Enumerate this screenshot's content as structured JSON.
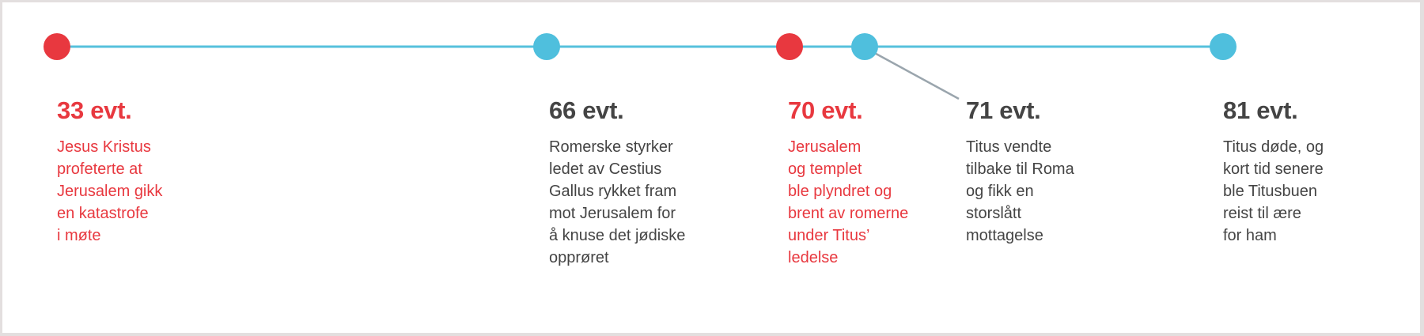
{
  "colors": {
    "line": "#56c1dc",
    "highlight": "#e8383f",
    "normal": "#444444",
    "connector": "#9aa5ad"
  },
  "events": [
    {
      "year": "33 evt.",
      "highlight": true,
      "lines": [
        "Jesus Kristus",
        "profeterte at",
        "Jerusalem gikk",
        "en katastrofe",
        "i møte"
      ]
    },
    {
      "year": "66 evt.",
      "highlight": false,
      "lines": [
        "Romerske styrker",
        "ledet av Cestius",
        "Gallus rykket fram",
        "mot Jerusalem for",
        "å knuse det jødiske",
        "opprøret"
      ]
    },
    {
      "year": "70 evt.",
      "highlight": true,
      "lines": [
        "Jerusalem",
        "og templet",
        "ble plyndret og",
        "brent av romerne",
        "under Titus’",
        "ledelse"
      ]
    },
    {
      "year": "71 evt.",
      "highlight": false,
      "lines": [
        "Titus vendte",
        "tilbake til Roma",
        "og fikk en",
        "storslått",
        "mottagelse"
      ]
    },
    {
      "year": "81 evt.",
      "highlight": false,
      "lines": [
        "Titus døde, og",
        "kort tid senere",
        "ble Titusbuen",
        "reist til ære",
        "for ham"
      ]
    }
  ]
}
